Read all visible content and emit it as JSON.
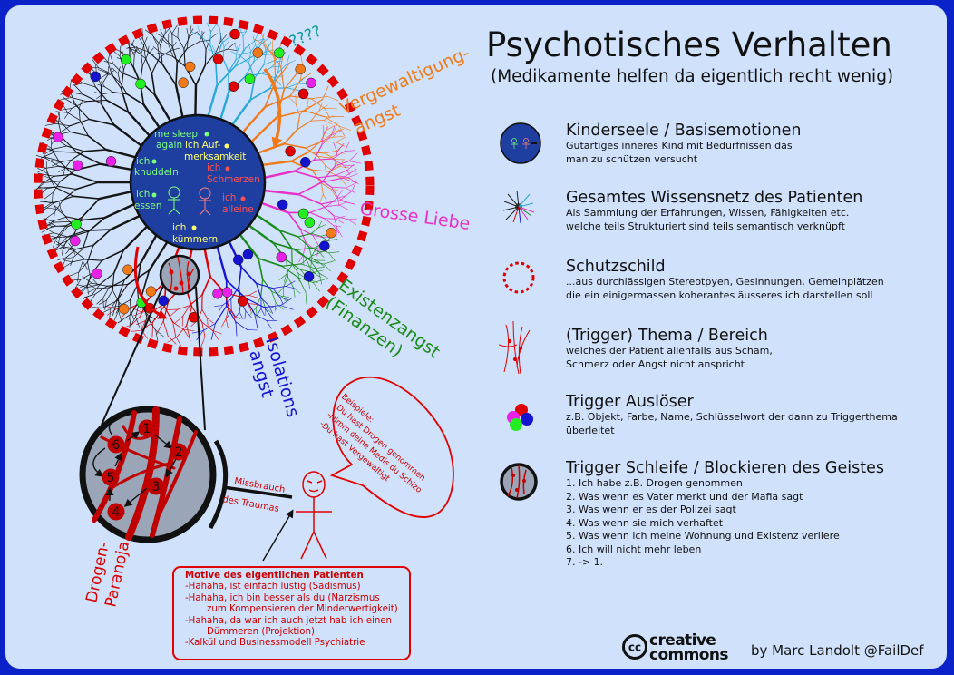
{
  "title": "Psychotisches Verhalten",
  "subtitle": "(Medikamente helfen da eigentlich recht wenig)",
  "legend": [
    {
      "title": "Kinderseele / Basisemotionen",
      "lines": [
        "Gutartiges inneres Kind mit Bedürfnissen das",
        "man zu schützen versucht"
      ]
    },
    {
      "title": "Gesamtes Wissensnetz des Patienten",
      "lines": [
        "Als Sammlung der Erfahrungen, Wissen, Fähigkeiten etc.",
        "welche teils Strukturiert sind teils semantisch verknüpft"
      ]
    },
    {
      "title": "Schutzschild",
      "lines": [
        "...aus durchlässigen Stereotpyen, Gesinnungen, Gemeinplätzen",
        "die ein einigermassen koherantes äusseres ich darstellen soll"
      ]
    },
    {
      "title": "(Trigger) Thema / Bereich",
      "lines": [
        "welches der Patient allenfalls aus Scham,",
        "Schmerz oder Angst nicht anspricht"
      ]
    },
    {
      "title": "Trigger Auslöser",
      "lines": [
        "z.B. Objekt, Farbe, Name, Schlüsselwort der dann zu Triggerthema",
        "überleitet"
      ]
    },
    {
      "title": "Trigger Schleife / Blockieren des Geistes",
      "lines": [
        "1. Ich habe z.B. Drogen genommen",
        "2. Was wenn es Vater merkt und der Mafia sagt",
        "3. Was wenn er es der Polizei sagt",
        "4. Was wenn sie mich verhaftet",
        "5. Was wenn ich meine Wohnung und Existenz verliere",
        "6. Ich will nicht mehr leben",
        "7. -> 1."
      ]
    }
  ],
  "core": {
    "needs": [
      "me sleep",
      "again",
      "ich Auf-",
      "merksamkeit",
      "ich",
      "knuddeln",
      "ich",
      "Schmerzen",
      "ich",
      "essen",
      "ich",
      "alleine",
      "ich",
      "kümmern"
    ]
  },
  "themes": {
    "questions": "????",
    "rape_fear": [
      "Vergewaltigung-",
      "angst"
    ],
    "love": "Grosse Liebe",
    "existence": [
      "Existenzangst",
      "(Finanzen)"
    ],
    "isolation": [
      "Isolations",
      "angst"
    ],
    "paranoia": [
      "Drogen-",
      "Paranoja"
    ]
  },
  "loop_numbers": [
    "1",
    "2",
    "3",
    "4",
    "5",
    "6"
  ],
  "abuse_label": [
    "Missbrauch",
    "des Traumas"
  ],
  "speech": {
    "lines": [
      "Beispiele:",
      "-Du hast Drogen genommen",
      "-Nimm deine Medis du Schizo",
      "-Du hast Vergewaltigt"
    ]
  },
  "motive": {
    "heading": "Motive des eigentlichen Patienten",
    "lines": [
      "-Hahaha, ist einfach lustig (Sadismus)",
      "-Hahaha, ich bin besser als du (Narzismus",
      "zum Kompensieren der Minderwertigkeit)",
      "-Hahaha, da war ich auch jetzt hab ich einen",
      "Dümmeren (Projektion)",
      "-Kalkül und Businessmodell Psychiatrie"
    ]
  },
  "license": {
    "line1": "creative",
    "line2": "commons",
    "symbol": "cc"
  },
  "credit": "by Marc Landolt @FailDef",
  "colors": {
    "frame": "#0a22c8",
    "background": "#cfe1fb",
    "core": "#1f3fa0",
    "shield": "#e00000",
    "rape_fear": "#f07a18",
    "love": "#e830c8",
    "existence": "#1a8a1a",
    "isolation": "#1414d0",
    "paranoia": "#dd0000"
  }
}
